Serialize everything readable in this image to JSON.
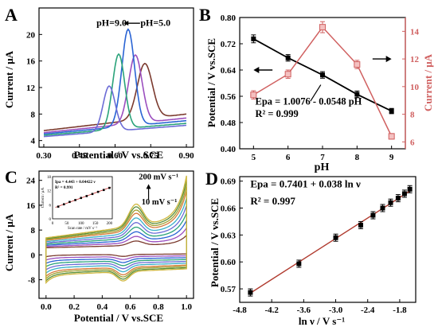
{
  "figure": {
    "panels": [
      "A",
      "B",
      "C",
      "D"
    ]
  },
  "chart_data": [
    {
      "panel": "A",
      "type": "line",
      "xlabel": "Potential / V vs.SCE",
      "ylabel": "Current / μA",
      "xlim": [
        0.28,
        0.93
      ],
      "ylim": [
        3,
        24
      ],
      "xticks": [
        "0.30",
        "0.45",
        "0.60",
        "0.75",
        "0.90"
      ],
      "yticks": [
        "4",
        "8",
        "12",
        "16",
        "20"
      ],
      "annotations": [
        "pH=9.0",
        "pH=5.0"
      ],
      "series": [
        {
          "color": "#7b3a2e",
          "peak_x": 0.725,
          "peak_y": 15.1,
          "width": 0.045,
          "base_l": 5.5,
          "base_r": 8.0
        },
        {
          "color": "#9b4fbf",
          "peak_x": 0.685,
          "peak_y": 16.6,
          "width": 0.04,
          "base_l": 5.2,
          "base_r": 7.4
        },
        {
          "color": "#2a64d4",
          "peak_x": 0.655,
          "peak_y": 20.6,
          "width": 0.038,
          "base_l": 5.0,
          "base_r": 7.0
        },
        {
          "color": "#2aa37a",
          "peak_x": 0.615,
          "peak_y": 17.0,
          "width": 0.036,
          "base_l": 4.8,
          "base_r": 6.6
        },
        {
          "color": "#6c6cd6",
          "peak_x": 0.575,
          "peak_y": 12.3,
          "width": 0.036,
          "base_l": 4.6,
          "base_r": 6.3
        }
      ]
    },
    {
      "panel": "B",
      "type": "line",
      "xlabel": "pH",
      "ylabel_left": "Potential / V vs.SCE",
      "ylabel_right": "Current / μA",
      "x": [
        5,
        6,
        7,
        8,
        9
      ],
      "xlim": [
        4.6,
        9.4
      ],
      "ylim_left": [
        0.4,
        0.8
      ],
      "ylim_right": [
        5.5,
        15
      ],
      "xticks": [
        "5",
        "6",
        "7",
        "8",
        "9"
      ],
      "yticks_left": [
        "0.40",
        "0.48",
        "0.56",
        "0.64",
        "0.72",
        "0.80"
      ],
      "yticks_right": [
        "6",
        "8",
        "10",
        "12",
        "14"
      ],
      "series": [
        {
          "axis": "left",
          "color": "#000000",
          "values": [
            0.735,
            0.677,
            0.625,
            0.566,
            0.515
          ],
          "errors": [
            0.012,
            0.01,
            0.01,
            0.01,
            0.008
          ]
        },
        {
          "axis": "right",
          "color": "#d06060",
          "values": [
            9.4,
            10.9,
            14.3,
            11.6,
            6.4
          ],
          "errors": [
            0.3,
            0.3,
            0.4,
            0.3,
            0.2
          ]
        }
      ],
      "equation": "Epa = 1.0076 - 0.0548 pH",
      "r2": "R² = 0.999"
    },
    {
      "panel": "C",
      "type": "line",
      "xlabel": "Potential / V vs.SCE",
      "ylabel": "Current / μA",
      "xlim": [
        -0.05,
        1.05
      ],
      "ylim": [
        -14,
        27
      ],
      "xticks": [
        "0.0",
        "0.2",
        "0.4",
        "0.6",
        "0.8",
        "1.0"
      ],
      "yticks": [
        "-8",
        "0",
        "8",
        "16",
        "24"
      ],
      "annotations": [
        "200 mV s⁻¹",
        "10 mV s⁻¹"
      ],
      "scan_colors": [
        "#7b3a2e",
        "#9b4fbf",
        "#2a64d4",
        "#2aa37a",
        "#6c6cd6",
        "#3ab0c8",
        "#d67a3a",
        "#a0a030",
        "#5a8f3a",
        "#d0b840"
      ],
      "scan_scales": [
        0.2,
        0.3,
        0.4,
        0.5,
        0.6,
        0.7,
        0.8,
        0.87,
        0.94,
        1.0
      ],
      "inset": {
        "xlabel": "Scan rate / mV s⁻¹",
        "ylabel": "Current / μA",
        "equation": "Ipa = 4.443 + 0.04422 ν",
        "r2": "R² = 0.991",
        "x": [
          20,
          40,
          60,
          80,
          100,
          120,
          140,
          160,
          180,
          200
        ],
        "y": [
          5.2,
          6.2,
          7.2,
          8.0,
          8.9,
          9.7,
          10.6,
          11.5,
          12.3,
          13.2
        ],
        "xticks": [
          "0",
          "50",
          "100",
          "150",
          "200"
        ],
        "yticks": [
          "0",
          "6",
          "12",
          "18"
        ]
      }
    },
    {
      "panel": "D",
      "type": "scatter",
      "xlabel": "ln ν / V s⁻¹",
      "ylabel": "Potential / V vs.SCE",
      "xlim": [
        -4.8,
        -1.5
      ],
      "ylim": [
        0.555,
        0.695
      ],
      "xticks": [
        "-4.8",
        "-4.2",
        "-3.6",
        "-3.0",
        "-2.4",
        "-1.8"
      ],
      "yticks": [
        "0.57",
        "0.60",
        "0.63",
        "0.66",
        "0.69"
      ],
      "x": [
        -4.6,
        -3.69,
        -3.0,
        -2.53,
        -2.3,
        -2.12,
        -1.97,
        -1.83,
        -1.71,
        -1.61
      ],
      "y": [
        0.566,
        0.598,
        0.627,
        0.641,
        0.652,
        0.66,
        0.666,
        0.671,
        0.676,
        0.681
      ],
      "errors": [
        0.004,
        0.004,
        0.004,
        0.004,
        0.004,
        0.004,
        0.004,
        0.004,
        0.004,
        0.004
      ],
      "fit_color": "#b03a2e",
      "equation": "Epa = 0.7401 + 0.038  ln ν",
      "r2": "R² = 0.997"
    }
  ]
}
